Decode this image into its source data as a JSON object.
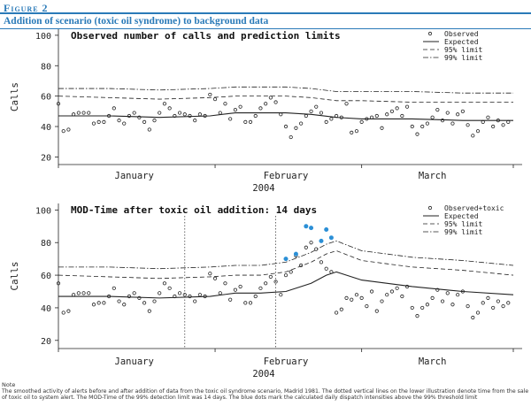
{
  "figure": {
    "label": "Figure 2",
    "title": "Addition of scenario (toxic oil syndrome) to background data"
  },
  "note": {
    "heading": "Note",
    "text": "The smoothed activity of alerts before and after addition of data from the toxic oil syndrome scenario, Madrid 1981. The dotted vertical lines on the lower illustration denote time from the sale of toxic oil to system alert. The MOD-Time of the 99% detection limit was 14 days. The blue dots mark the calculated daily dispatch intensities above the 99% threshold limit"
  },
  "colors": {
    "accent": "#2a7ab8",
    "alert_dots": "#2b8fd6"
  },
  "chart_data": [
    {
      "type": "line",
      "title": "Observed number of calls and prediction limits",
      "xlabel": "2004",
      "ylabel": "Calls",
      "ylim": [
        15,
        104
      ],
      "yticks": [
        20,
        40,
        60,
        80,
        100
      ],
      "xlim": [
        0,
        90
      ],
      "month_labels": [
        {
          "label": "January",
          "x": 15
        },
        {
          "label": "February",
          "x": 45
        },
        {
          "label": "March",
          "x": 74
        }
      ],
      "legend": [
        "Observed",
        "Expected",
        "95% limit",
        "99% limit"
      ],
      "legend_position": "top-right",
      "series": [
        {
          "name": "Observed",
          "style": "points",
          "x": [
            0,
            1,
            2,
            3,
            4,
            5,
            6,
            7,
            8,
            9,
            10,
            11,
            12,
            13,
            14,
            15,
            16,
            17,
            18,
            19,
            20,
            21,
            22,
            23,
            24,
            25,
            26,
            27,
            28,
            29,
            30,
            31,
            32,
            33,
            34,
            35,
            36,
            37,
            38,
            39,
            40,
            41,
            42,
            43,
            44,
            45,
            46,
            47,
            48,
            49,
            50,
            51,
            52,
            53,
            54,
            55,
            56,
            57,
            58,
            59,
            60,
            61,
            62,
            63,
            64,
            65,
            66,
            67,
            68,
            69,
            70,
            71,
            72,
            73,
            74,
            75,
            76,
            77,
            78,
            79,
            80,
            81,
            82,
            83,
            84,
            85,
            86,
            87,
            88,
            89
          ],
          "y": [
            55,
            37,
            38,
            48,
            49,
            49,
            49,
            42,
            43,
            43,
            47,
            52,
            44,
            42,
            47,
            49,
            46,
            43,
            38,
            44,
            49,
            55,
            52,
            47,
            49,
            48,
            47,
            44,
            48,
            47,
            61,
            58,
            49,
            55,
            45,
            51,
            53,
            43,
            43,
            47,
            52,
            55,
            59,
            56,
            48,
            40,
            33,
            39,
            42,
            47,
            50,
            53,
            49,
            43,
            45,
            47,
            46,
            55,
            36,
            37,
            43,
            45,
            46,
            47,
            39,
            48,
            50,
            52,
            47,
            53,
            40,
            35,
            40,
            42,
            46,
            51,
            44,
            49,
            42,
            48,
            50,
            41,
            34,
            37,
            43,
            46,
            40,
            44,
            41,
            43
          ]
        },
        {
          "name": "Expected",
          "style": "solid",
          "x": [
            0,
            10,
            20,
            30,
            35,
            40,
            45,
            50,
            55,
            60,
            70,
            80,
            90
          ],
          "y": [
            47,
            47,
            46,
            47,
            49,
            49,
            49,
            48,
            46,
            45,
            45,
            44,
            44
          ]
        },
        {
          "name": "95% limit",
          "style": "dashed",
          "x": [
            0,
            10,
            20,
            30,
            35,
            40,
            45,
            50,
            55,
            60,
            70,
            80,
            90
          ],
          "y": [
            60,
            59,
            58,
            59,
            60,
            60,
            60,
            59,
            57,
            57,
            56,
            56,
            56
          ]
        },
        {
          "name": "99% limit",
          "style": "dashdot",
          "x": [
            0,
            10,
            20,
            30,
            35,
            40,
            45,
            50,
            55,
            60,
            70,
            80,
            90
          ],
          "y": [
            65,
            65,
            64,
            65,
            66,
            66,
            66,
            65,
            63,
            63,
            63,
            62,
            62
          ]
        }
      ]
    },
    {
      "type": "line",
      "title": "MOD-Time after toxic oil addition: 14 days",
      "xlabel": "2004",
      "ylabel": "Calls",
      "ylim": [
        15,
        104
      ],
      "yticks": [
        20,
        40,
        60,
        80,
        100
      ],
      "xlim": [
        0,
        90
      ],
      "month_labels": [
        {
          "label": "January",
          "x": 15
        },
        {
          "label": "February",
          "x": 45
        },
        {
          "label": "March",
          "x": 74
        }
      ],
      "vlines": [
        25,
        43
      ],
      "legend": [
        "Observed+toxic",
        "Expected",
        "95% limit",
        "99% limit"
      ],
      "legend_position": "top-right",
      "series": [
        {
          "name": "Observed+toxic",
          "style": "points",
          "x": [
            0,
            1,
            2,
            3,
            4,
            5,
            6,
            7,
            8,
            9,
            10,
            11,
            12,
            13,
            14,
            15,
            16,
            17,
            18,
            19,
            20,
            21,
            22,
            23,
            24,
            25,
            26,
            27,
            28,
            29,
            30,
            31,
            32,
            33,
            34,
            35,
            36,
            37,
            38,
            39,
            40,
            41,
            42,
            43,
            44,
            45,
            46,
            47,
            48,
            49,
            50,
            51,
            52,
            53,
            54,
            55,
            56,
            57,
            58,
            59,
            60,
            61,
            62,
            63,
            64,
            65,
            66,
            67,
            68,
            69,
            70,
            71,
            72,
            73,
            74,
            75,
            76,
            77,
            78,
            79,
            80,
            81,
            82,
            83,
            84,
            85,
            86,
            87,
            88,
            89
          ],
          "y": [
            55,
            37,
            38,
            48,
            49,
            49,
            49,
            42,
            43,
            43,
            47,
            52,
            44,
            42,
            47,
            49,
            46,
            43,
            38,
            44,
            49,
            55,
            52,
            47,
            49,
            48,
            47,
            44,
            48,
            47,
            61,
            58,
            49,
            55,
            45,
            51,
            53,
            43,
            43,
            47,
            52,
            55,
            59,
            56,
            48,
            60,
            62,
            72,
            66,
            77,
            80,
            76,
            68,
            64,
            62,
            37,
            39,
            46,
            45,
            48,
            46,
            41,
            50,
            38,
            44,
            48,
            50,
            52,
            47,
            53,
            40,
            35,
            40,
            42,
            46,
            51,
            44,
            49,
            42,
            48,
            50,
            41,
            34,
            37,
            43,
            46,
            40,
            44,
            41,
            43
          ]
        },
        {
          "name": "Alerts above 99% limit",
          "style": "highlight",
          "x": [
            45,
            47,
            49,
            50,
            52,
            53,
            54
          ],
          "y": [
            70,
            73,
            90,
            89,
            81,
            88,
            83
          ]
        },
        {
          "name": "Expected",
          "style": "solid",
          "x": [
            0,
            10,
            20,
            30,
            35,
            40,
            45,
            50,
            53,
            55,
            60,
            70,
            80,
            90
          ],
          "y": [
            47,
            47,
            46,
            47,
            49,
            49,
            50,
            55,
            60,
            62,
            57,
            53,
            50,
            48
          ]
        },
        {
          "name": "95% limit",
          "style": "dashed",
          "x": [
            0,
            10,
            20,
            30,
            35,
            40,
            45,
            50,
            53,
            55,
            60,
            70,
            80,
            90
          ],
          "y": [
            60,
            59,
            58,
            59,
            60,
            60,
            62,
            68,
            73,
            75,
            69,
            65,
            63,
            60
          ]
        },
        {
          "name": "99% limit",
          "style": "dashdot",
          "x": [
            0,
            10,
            20,
            30,
            35,
            40,
            45,
            50,
            53,
            55,
            60,
            70,
            80,
            90
          ],
          "y": [
            65,
            65,
            64,
            65,
            66,
            66,
            68,
            74,
            79,
            81,
            75,
            71,
            69,
            66
          ]
        }
      ]
    }
  ]
}
